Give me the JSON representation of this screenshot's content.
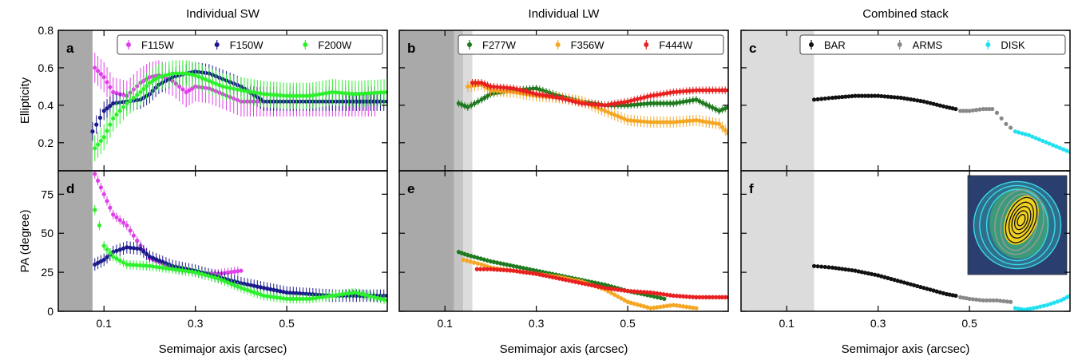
{
  "figure": {
    "columns": [
      "Individual SW",
      "Individual LW",
      "Combined stack"
    ],
    "ylabels": [
      "Ellipticity",
      "PA (degree)"
    ],
    "xlabel": "Semimajor axis (arcsec)"
  },
  "chart_data": [
    {
      "panel": "a",
      "column": "Individual SW",
      "type": "scatter",
      "quantity": "Ellipticity",
      "xlabel": "",
      "ylabel": "Ellipticity",
      "xlim": [
        0.0,
        0.72
      ],
      "ylim": [
        0.05,
        0.8
      ],
      "xticks": [
        "0.1",
        "0.3",
        "0.5"
      ],
      "yticks": [
        "0.2",
        "0.4",
        "0.6",
        "0.8"
      ],
      "shaded": [
        {
          "x": [
            0.0,
            0.075
          ],
          "tone": "dark"
        }
      ],
      "legend": {
        "position": "top-right",
        "entries": [
          "F115W",
          "F150W",
          "F200W"
        ]
      },
      "series": [
        {
          "name": "F115W",
          "color": "#e040e8",
          "err": 0.08,
          "x": [
            0.08,
            0.1,
            0.12,
            0.15,
            0.18,
            0.2,
            0.22,
            0.25,
            0.28,
            0.3,
            0.33,
            0.36,
            0.4,
            0.42,
            0.5,
            0.6,
            0.7
          ],
          "y": [
            0.6,
            0.55,
            0.47,
            0.45,
            0.52,
            0.55,
            0.56,
            0.53,
            0.47,
            0.5,
            0.49,
            0.46,
            0.42,
            0.42,
            0.42,
            0.42,
            0.42
          ]
        },
        {
          "name": "F150W",
          "color": "#1a1a8c",
          "err": 0.05,
          "x": [
            0.075,
            0.1,
            0.12,
            0.15,
            0.18,
            0.2,
            0.22,
            0.25,
            0.28,
            0.3,
            0.33,
            0.36,
            0.4,
            0.45,
            0.5,
            0.6,
            0.72
          ],
          "y": [
            0.26,
            0.37,
            0.41,
            0.42,
            0.43,
            0.46,
            0.51,
            0.55,
            0.57,
            0.58,
            0.57,
            0.54,
            0.5,
            0.42,
            0.42,
            0.42,
            0.42
          ]
        },
        {
          "name": "F200W",
          "color": "#2cf02c",
          "err": 0.07,
          "x": [
            0.08,
            0.1,
            0.12,
            0.15,
            0.18,
            0.2,
            0.22,
            0.25,
            0.28,
            0.3,
            0.33,
            0.36,
            0.4,
            0.45,
            0.5,
            0.55,
            0.6,
            0.65,
            0.72
          ],
          "y": [
            0.17,
            0.23,
            0.33,
            0.41,
            0.47,
            0.52,
            0.55,
            0.57,
            0.57,
            0.56,
            0.53,
            0.5,
            0.48,
            0.46,
            0.45,
            0.45,
            0.47,
            0.46,
            0.47
          ]
        }
      ]
    },
    {
      "panel": "b",
      "column": "Individual LW",
      "type": "scatter",
      "quantity": "Ellipticity",
      "xlabel": "",
      "ylabel": "",
      "xlim": [
        0.0,
        0.72
      ],
      "ylim": [
        0.05,
        0.8
      ],
      "xticks": [
        "0.1",
        "0.3",
        "0.5"
      ],
      "yticks": [],
      "shaded": [
        {
          "x": [
            0.0,
            0.12
          ],
          "tone": "dark"
        },
        {
          "x": [
            0.12,
            0.14
          ],
          "tone": "mid"
        },
        {
          "x": [
            0.14,
            0.16
          ],
          "tone": "light"
        }
      ],
      "legend": {
        "position": "top-right",
        "entries": [
          "F277W",
          "F356W",
          "F444W"
        ]
      },
      "series": [
        {
          "name": "F277W",
          "color": "#1e7a1e",
          "err": 0.02,
          "x": [
            0.13,
            0.15,
            0.18,
            0.2,
            0.25,
            0.3,
            0.35,
            0.4,
            0.45,
            0.5,
            0.55,
            0.6,
            0.65,
            0.7,
            0.72
          ],
          "y": [
            0.41,
            0.39,
            0.43,
            0.46,
            0.48,
            0.49,
            0.45,
            0.42,
            0.4,
            0.4,
            0.41,
            0.41,
            0.43,
            0.37,
            0.39
          ]
        },
        {
          "name": "F356W",
          "color": "#f5a623",
          "err": 0.03,
          "x": [
            0.15,
            0.18,
            0.2,
            0.25,
            0.3,
            0.35,
            0.4,
            0.45,
            0.5,
            0.55,
            0.6,
            0.65,
            0.7,
            0.72
          ],
          "y": [
            0.5,
            0.51,
            0.48,
            0.47,
            0.45,
            0.44,
            0.42,
            0.37,
            0.32,
            0.31,
            0.31,
            0.32,
            0.3,
            0.25
          ]
        },
        {
          "name": "F444W",
          "color": "#e82020",
          "err": 0.02,
          "x": [
            0.16,
            0.18,
            0.2,
            0.25,
            0.3,
            0.35,
            0.4,
            0.45,
            0.5,
            0.55,
            0.6,
            0.65,
            0.7,
            0.72
          ],
          "y": [
            0.52,
            0.52,
            0.5,
            0.49,
            0.46,
            0.44,
            0.41,
            0.4,
            0.42,
            0.45,
            0.47,
            0.48,
            0.48,
            0.48
          ]
        }
      ]
    },
    {
      "panel": "c",
      "column": "Combined stack",
      "type": "scatter",
      "quantity": "Ellipticity",
      "xlabel": "",
      "ylabel": "",
      "xlim": [
        0.0,
        0.72
      ],
      "ylim": [
        0.05,
        0.8
      ],
      "xticks": [
        "0.1",
        "0.3",
        "0.5"
      ],
      "yticks": [],
      "shaded": [
        {
          "x": [
            0.0,
            0.16
          ],
          "tone": "light"
        }
      ],
      "legend": {
        "position": "top-right",
        "entries": [
          "BAR",
          "ARMS",
          "DISK"
        ]
      },
      "series": [
        {
          "name": "BAR",
          "color": "#111111",
          "err": 0.01,
          "x": [
            0.16,
            0.2,
            0.25,
            0.3,
            0.35,
            0.4,
            0.45,
            0.47
          ],
          "y": [
            0.43,
            0.44,
            0.45,
            0.45,
            0.44,
            0.42,
            0.39,
            0.38
          ]
        },
        {
          "name": "ARMS",
          "color": "#888888",
          "err": 0.01,
          "x": [
            0.48,
            0.5,
            0.53,
            0.55,
            0.56,
            0.57,
            0.58,
            0.59
          ],
          "y": [
            0.37,
            0.37,
            0.38,
            0.38,
            0.36,
            0.33,
            0.3,
            0.28
          ]
        },
        {
          "name": "DISK",
          "color": "#22e0f0",
          "err": 0.01,
          "x": [
            0.6,
            0.63,
            0.66,
            0.69,
            0.72
          ],
          "y": [
            0.26,
            0.24,
            0.21,
            0.18,
            0.15
          ]
        }
      ]
    },
    {
      "panel": "d",
      "column": "Individual SW",
      "type": "scatter",
      "quantity": "PA (degree)",
      "xlabel": "Semimajor axis (arcsec)",
      "ylabel": "PA (degree)",
      "xlim": [
        0.0,
        0.72
      ],
      "ylim": [
        0,
        90
      ],
      "xticks": [
        "0.1",
        "0.3",
        "0.5"
      ],
      "yticks": [
        "0",
        "25",
        "50",
        "75"
      ],
      "shaded": [
        {
          "x": [
            0.0,
            0.075
          ],
          "tone": "dark"
        }
      ],
      "series": [
        {
          "name": "F115W",
          "color": "#e040e8",
          "err": 3,
          "x": [
            0.08,
            0.1,
            0.12,
            0.15,
            0.18,
            0.2,
            0.25,
            0.3,
            0.35,
            0.4
          ],
          "y": [
            88,
            75,
            62,
            55,
            42,
            34,
            28,
            25,
            24,
            26
          ]
        },
        {
          "name": "F150W",
          "color": "#1a1a8c",
          "err": 4,
          "x": [
            0.08,
            0.1,
            0.12,
            0.15,
            0.18,
            0.2,
            0.25,
            0.3,
            0.35,
            0.4,
            0.45,
            0.5,
            0.6,
            0.72
          ],
          "y": [
            30,
            33,
            38,
            41,
            40,
            35,
            29,
            26,
            22,
            18,
            15,
            12,
            10,
            10
          ]
        },
        {
          "name": "F200W",
          "color": "#2cf02c",
          "err": 3,
          "x": [
            0.08,
            0.09,
            0.1,
            0.12,
            0.15,
            0.2,
            0.25,
            0.3,
            0.35,
            0.4,
            0.45,
            0.5,
            0.55,
            0.6,
            0.65,
            0.72
          ],
          "y": [
            65,
            55,
            42,
            35,
            30,
            29,
            27,
            25,
            21,
            15,
            10,
            8,
            8,
            10,
            12,
            7
          ]
        }
      ]
    },
    {
      "panel": "e",
      "column": "Individual LW",
      "type": "scatter",
      "quantity": "PA (degree)",
      "xlabel": "Semimajor axis (arcsec)",
      "ylabel": "",
      "xlim": [
        0.0,
        0.72
      ],
      "ylim": [
        0,
        90
      ],
      "xticks": [
        "0.1",
        "0.3",
        "0.5"
      ],
      "yticks": [],
      "shaded": [
        {
          "x": [
            0.0,
            0.12
          ],
          "tone": "dark"
        },
        {
          "x": [
            0.12,
            0.14
          ],
          "tone": "mid"
        },
        {
          "x": [
            0.14,
            0.16
          ],
          "tone": "light"
        }
      ],
      "series": [
        {
          "name": "F277W",
          "color": "#1e7a1e",
          "err": 1.5,
          "x": [
            0.13,
            0.15,
            0.2,
            0.25,
            0.3,
            0.35,
            0.4,
            0.45,
            0.5,
            0.55,
            0.58
          ],
          "y": [
            38,
            36,
            32,
            29,
            26,
            23,
            20,
            17,
            13,
            10,
            8
          ]
        },
        {
          "name": "F356W",
          "color": "#f5a623",
          "err": 1.5,
          "x": [
            0.14,
            0.18,
            0.2,
            0.25,
            0.3,
            0.35,
            0.4,
            0.45,
            0.5,
            0.55,
            0.6,
            0.65
          ],
          "y": [
            33,
            30,
            28,
            26,
            24,
            22,
            19,
            14,
            6,
            2,
            4,
            2
          ]
        },
        {
          "name": "F444W",
          "color": "#e82020",
          "err": 1.5,
          "x": [
            0.17,
            0.2,
            0.25,
            0.3,
            0.35,
            0.4,
            0.45,
            0.5,
            0.55,
            0.6,
            0.65,
            0.7,
            0.72
          ],
          "y": [
            27,
            27,
            26,
            24,
            21,
            18,
            15,
            13,
            12,
            10,
            9,
            9,
            9
          ]
        }
      ]
    },
    {
      "panel": "f",
      "column": "Combined stack",
      "type": "scatter",
      "quantity": "PA (degree)",
      "xlabel": "Semimajor axis (arcsec)",
      "ylabel": "",
      "xlim": [
        0.0,
        0.72
      ],
      "ylim": [
        0,
        90
      ],
      "xticks": [
        "0.1",
        "0.3",
        "0.5"
      ],
      "yticks": [],
      "shaded": [
        {
          "x": [
            0.0,
            0.16
          ],
          "tone": "light"
        }
      ],
      "inset": "galaxy image with isophote contours",
      "series": [
        {
          "name": "BAR",
          "color": "#111111",
          "err": 0.8,
          "x": [
            0.16,
            0.2,
            0.25,
            0.3,
            0.35,
            0.4,
            0.45,
            0.47
          ],
          "y": [
            29,
            28,
            26,
            23,
            19,
            15,
            11,
            10
          ]
        },
        {
          "name": "ARMS",
          "color": "#888888",
          "err": 0.8,
          "x": [
            0.48,
            0.5,
            0.53,
            0.56,
            0.59
          ],
          "y": [
            9,
            8,
            7,
            7,
            6
          ]
        },
        {
          "name": "DISK",
          "color": "#22e0f0",
          "err": 0.8,
          "x": [
            0.6,
            0.62,
            0.64,
            0.67,
            0.7,
            0.72
          ],
          "y": [
            2,
            1,
            2,
            4,
            7,
            10
          ]
        }
      ]
    }
  ]
}
